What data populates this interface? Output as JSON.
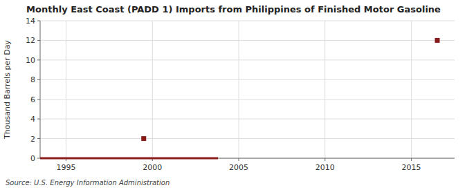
{
  "chart_data": {
    "type": "line",
    "title": "Monthly East Coast (PADD 1) Imports from Philippines of Finished Motor Gasoline",
    "y_label": "Thousand Barrels per Day",
    "source": "Source: U.S. Energy Information Administration",
    "xlim": [
      1993.5,
      2017.5
    ],
    "ylim": [
      0,
      14
    ],
    "xticks": [
      1995,
      2000,
      2005,
      2010,
      2015
    ],
    "yticks": [
      0,
      2,
      4,
      6,
      8,
      10,
      12,
      14
    ],
    "grid": true,
    "series": [
      {
        "type": "line",
        "color": "#8b1a1a",
        "x": [
          1993.5,
          2003.8
        ],
        "values": [
          0.0,
          0.0
        ]
      },
      {
        "type": "scatter",
        "marker": "square",
        "color": "#8b1a1a",
        "x": [
          1999.5,
          2016.5
        ],
        "values": [
          2.0,
          12.0
        ]
      }
    ]
  }
}
